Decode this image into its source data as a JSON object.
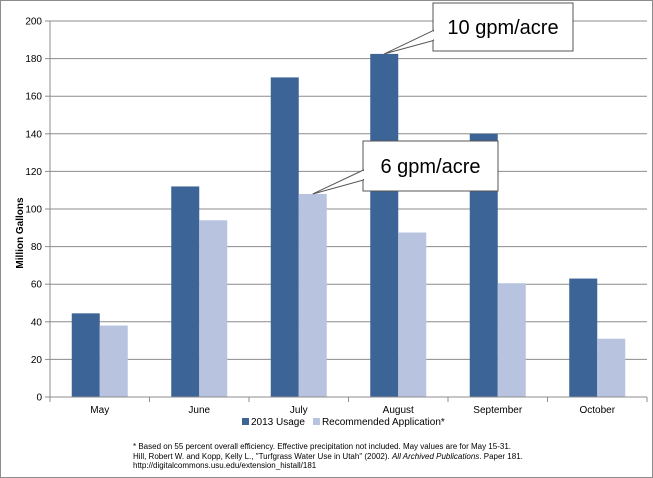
{
  "chart_data": {
    "type": "bar",
    "categories": [
      "May",
      "June",
      "July",
      "August",
      "September",
      "October"
    ],
    "series": [
      {
        "name": "2013 Usage",
        "values": [
          44.5,
          112,
          170,
          182.5,
          140,
          63
        ]
      },
      {
        "name": "Recommended Application*",
        "values": [
          38,
          94,
          108,
          87.5,
          60.5,
          31
        ]
      }
    ],
    "ylabel": "Million Gallons",
    "ylim": [
      0,
      200
    ],
    "yticks": [
      "0",
      "20",
      "40",
      "60",
      "80",
      "100",
      "120",
      "140",
      "160",
      "180",
      "200"
    ],
    "grid": true,
    "legend_position": "bottom",
    "annotations": [
      {
        "text": "10 gpm/acre",
        "category": "August",
        "series": "2013 Usage"
      },
      {
        "text": "6 gpm/acre",
        "category": "July",
        "series": "Recommended Application*"
      }
    ],
    "colors": {
      "2013 Usage": "#3c6496",
      "Recommended Application*": "#b7c3df"
    }
  },
  "footnote": {
    "line1": "* Based on 55 percent overall efficiency.  Effective precipitation not included.  May values are for May 15-31.",
    "line2_before": "Hill, Robert W. and Kopp, Kelly L., \"Turfgrass Water Use in Utah\" (2002). ",
    "line2_italic": "All Archived Publications",
    "line2_after": ". Paper 181.",
    "line3": "http://digitalcommons.usu.edu/extension_histall/181"
  }
}
